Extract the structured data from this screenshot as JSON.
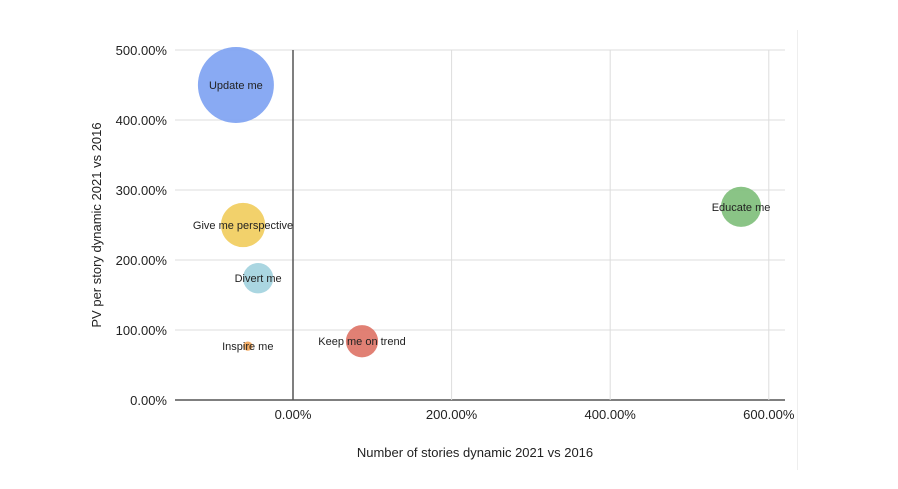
{
  "chart_data": {
    "type": "bubble",
    "title": "",
    "xlabel": "Number of stories dynamic 2021 vs 2016",
    "ylabel": "PV per story dynamic 2021 vs 2016",
    "xlim": [
      -150,
      600
    ],
    "ylim": [
      0,
      500
    ],
    "xticks": [
      0,
      200,
      400,
      600
    ],
    "xtick_labels": [
      "0.00%",
      "200.00%",
      "400.00%",
      "600.00%"
    ],
    "yticks": [
      0,
      100,
      200,
      300,
      400,
      500
    ],
    "ytick_labels": [
      "0.00%",
      "100.00%",
      "200.00%",
      "300.00%",
      "400.00%",
      "500.00%"
    ],
    "grid": true,
    "legend": "none",
    "points": [
      {
        "label": "Update me",
        "x": -72,
        "y": 450,
        "size": 100,
        "color": "#7fa3f2"
      },
      {
        "label": "Give me perspective",
        "x": -63,
        "y": 250,
        "size": 34,
        "color": "#f1cd5e"
      },
      {
        "label": "Divert me",
        "x": -44,
        "y": 174,
        "size": 16,
        "color": "#a3d3de"
      },
      {
        "label": "Inspire me",
        "x": -57,
        "y": 77,
        "size": 1.5,
        "color": "#f2a65a"
      },
      {
        "label": "Keep me on trend",
        "x": 87,
        "y": 84,
        "size": 18,
        "color": "#de7568"
      },
      {
        "label": "Educate me",
        "x": 565,
        "y": 276,
        "size": 28,
        "color": "#80bf7c"
      }
    ]
  }
}
